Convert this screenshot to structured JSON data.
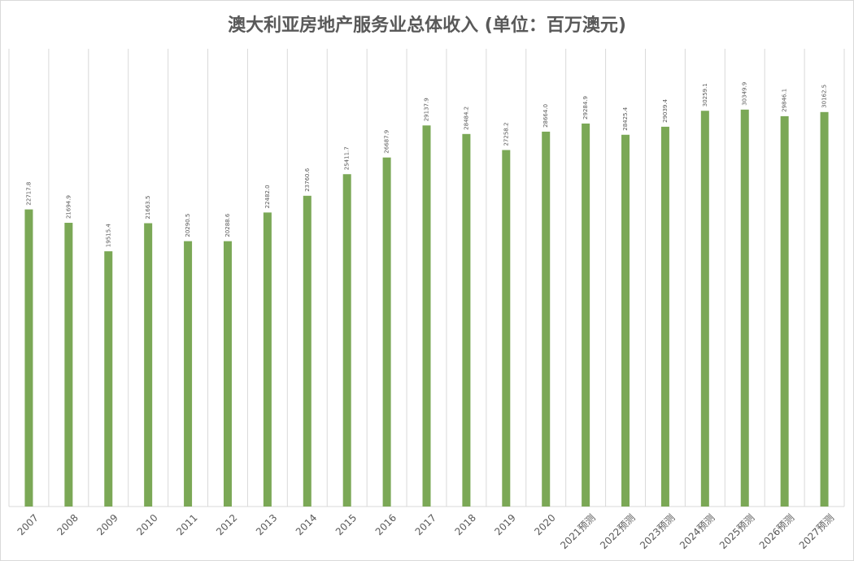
{
  "chart_data": {
    "type": "bar",
    "title": "澳大利亚房地产服务业总体收入 (单位：百万澳元)",
    "categories": [
      "2007",
      "2008",
      "2009",
      "2010",
      "2011",
      "2012",
      "2013",
      "2014",
      "2015",
      "2016",
      "2017",
      "2018",
      "2019",
      "2020",
      "2021预测",
      "2022预测",
      "2023预测",
      "2024预测",
      "2025预测",
      "2026预测",
      "2027预测"
    ],
    "values": [
      22717.8,
      21694.9,
      19515.4,
      21663.5,
      20290.5,
      20288.6,
      22482.0,
      23760.6,
      25411.7,
      26687.9,
      29137.9,
      28484.2,
      27258.2,
      28664.0,
      29284.9,
      28425.4,
      29039.4,
      30259.1,
      30349.9,
      29846.1,
      30162.5
    ],
    "value_labels": [
      "22717.8",
      "21694.9",
      "19515.4",
      "21663.5",
      "20290.5",
      "20288.6",
      "22482.0",
      "23760.6",
      "25411.7",
      "26687.9",
      "29137.9",
      "28484.2",
      "27258.2",
      "28664.0",
      "29284.9",
      "28425.4",
      "29039.4",
      "30259.1",
      "30349.9",
      "29846.1",
      "30162.5"
    ],
    "color": "#7ba856",
    "ylim": [
      0,
      35000
    ]
  }
}
